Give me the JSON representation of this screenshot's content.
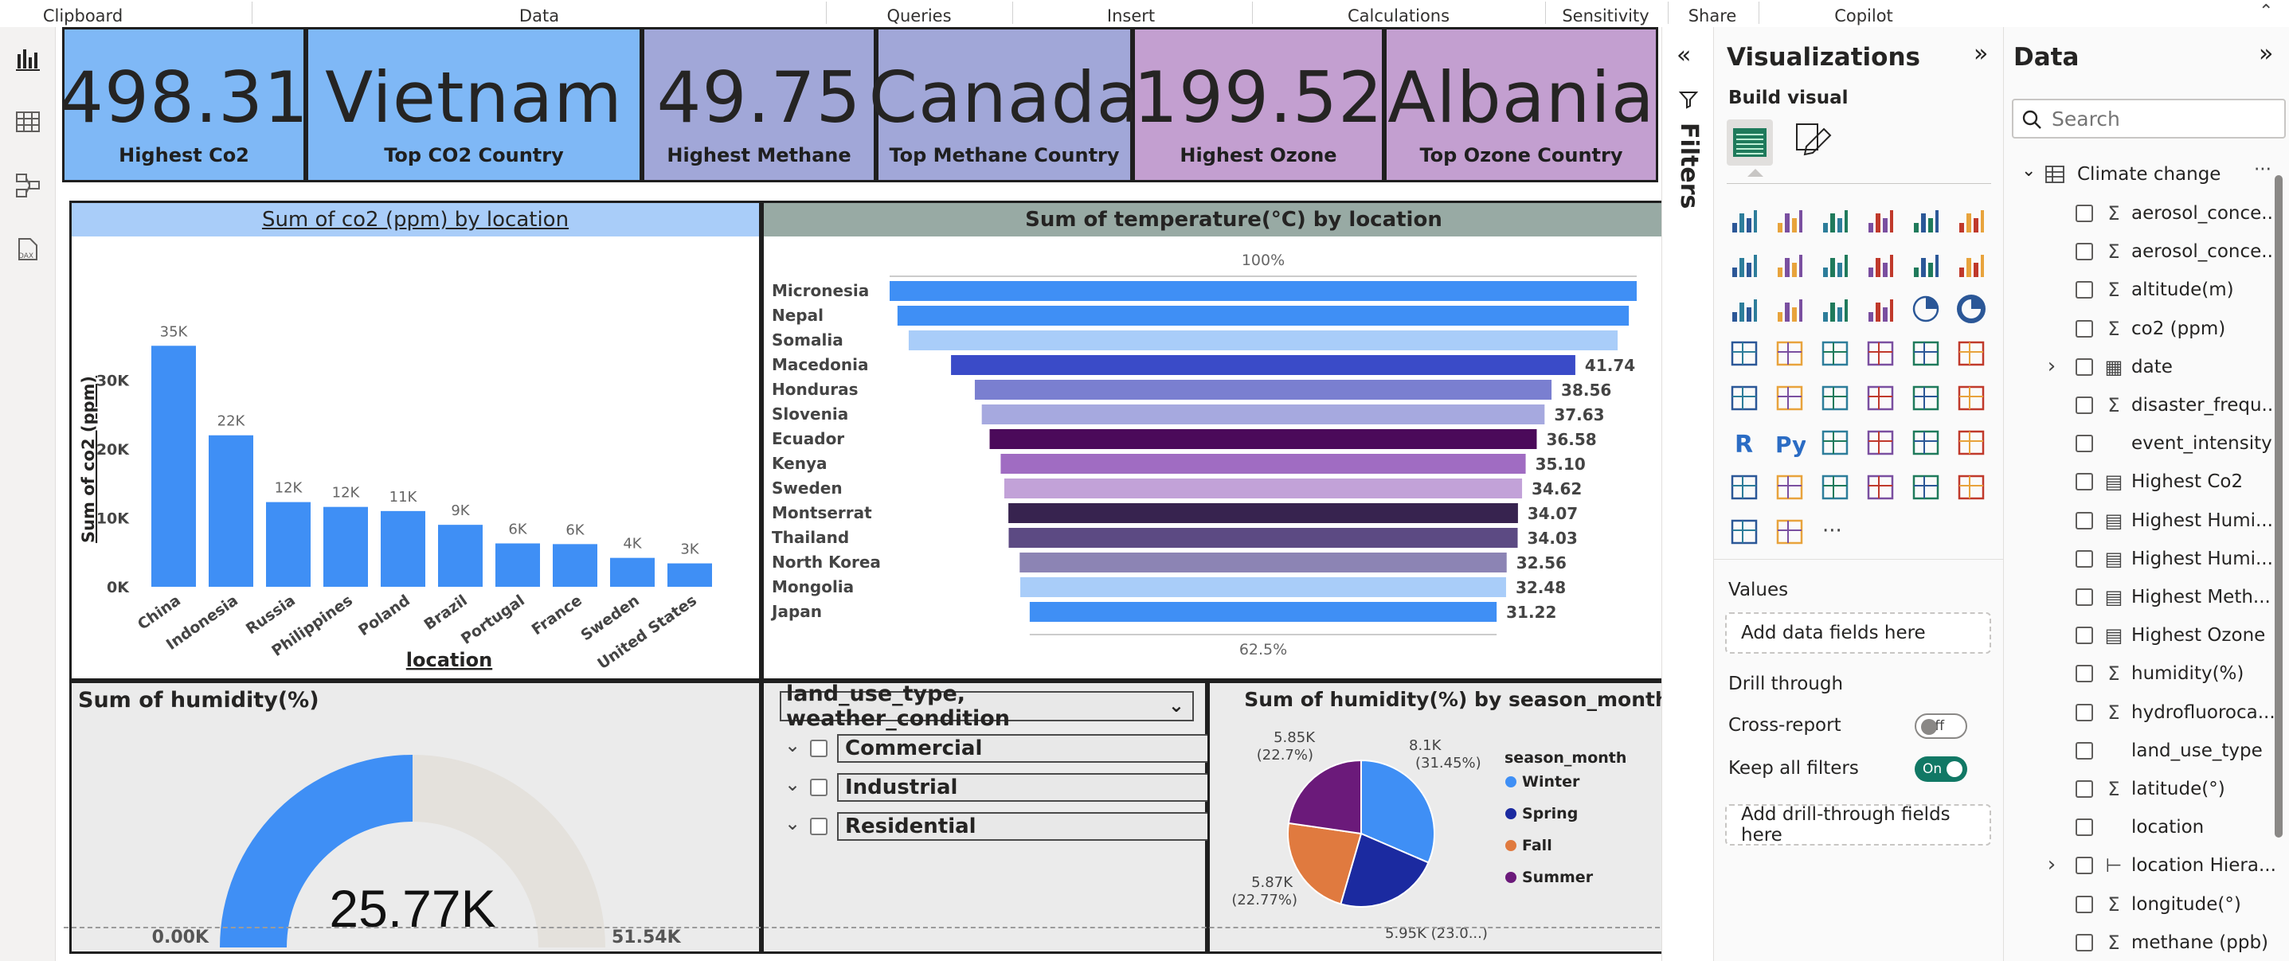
{
  "ribbon": {
    "groups": [
      "Clipboard",
      "Data",
      "Queries",
      "Insert",
      "Calculations",
      "Sensitivity",
      "Share",
      "Copilot"
    ]
  },
  "colors": {
    "kpi_blue": "#7fb8f6",
    "kpi_lavender": "#a1a7d8",
    "kpi_mauve": "#c39fd0",
    "bar_blue": "#3f8ff5",
    "toggle_on": "#117865"
  },
  "kpis": [
    {
      "value": "498.31",
      "label": "Highest Co2",
      "color": "#7fb8f6"
    },
    {
      "value": "Vietnam",
      "label": "Top CO2 Country",
      "color": "#7fb8f6"
    },
    {
      "value": "49.75",
      "label": "Highest Methane",
      "color": "#a1a7d8"
    },
    {
      "value": "Canada",
      "label": "Top Methane Country",
      "color": "#a1a7d8"
    },
    {
      "value": "199.52",
      "label": "Highest Ozone",
      "color": "#c39fd0"
    },
    {
      "value": "Albania",
      "label": "Top Ozone Country",
      "color": "#c39fd0"
    }
  ],
  "chart_data": [
    {
      "type": "bar",
      "title": "Sum of co2 (ppm) by location",
      "xlabel": "location",
      "ylabel": "Sum of co2 (ppm)",
      "categories": [
        "China",
        "Indonesia",
        "Russia",
        "Philippines",
        "Poland",
        "Brazil",
        "Portugal",
        "France",
        "Sweden",
        "United States"
      ],
      "values": [
        35000,
        22000,
        12300,
        11600,
        11000,
        9000,
        6300,
        6200,
        4200,
        3400
      ],
      "data_labels": [
        "35K",
        "22K",
        "12K",
        "12K",
        "11K",
        "9K",
        "6K",
        "6K",
        "4K",
        "3K"
      ],
      "yticks": [
        "0K",
        "10K",
        "20K",
        "30K"
      ],
      "ylim": [
        0,
        37000
      ]
    },
    {
      "type": "bar",
      "subtype": "funnel",
      "title": "Sum of temperature(°C) by location",
      "top_label": "100%",
      "bottom_label": "62.5%",
      "categories": [
        "Micronesia",
        "Nepal",
        "Somalia",
        "Macedonia",
        "Honduras",
        "Slovenia",
        "Ecuador",
        "Kenya",
        "Sweden",
        "Montserrat",
        "Thailand",
        "North Korea",
        "Mongolia",
        "Japan"
      ],
      "values": [
        49.95,
        48.9,
        47.4,
        41.74,
        38.56,
        37.63,
        36.58,
        35.1,
        34.62,
        34.07,
        34.03,
        32.56,
        32.48,
        31.22
      ],
      "data_labels": [
        "",
        "",
        "",
        "41.74",
        "38.56",
        "37.63",
        "36.58",
        "35.10",
        "34.62",
        "34.07",
        "34.03",
        "32.56",
        "32.48",
        "31.22"
      ],
      "colors": [
        "#3f8ff5",
        "#3f8ff5",
        "#a9cdf9",
        "#3a4bc8",
        "#7a7fd0",
        "#a6a9df",
        "#4b0a5a",
        "#a06cc2",
        "#c2a2d8",
        "#37234f",
        "#5c4a83",
        "#8c84b4",
        "#a9cdf9",
        "#3f8ff5"
      ]
    },
    {
      "type": "gauge",
      "title": "Sum of humidity(%)",
      "value": 25770,
      "value_label": "25.77K",
      "min": 0,
      "max": 51540,
      "min_label": "0.00K",
      "max_label": "51.54K"
    },
    {
      "type": "pie",
      "title": "Sum of humidity(%) by season_month",
      "legend_title": "season_month",
      "legend_position": "right",
      "categories": [
        "Winter",
        "Spring",
        "Fall",
        "Summer"
      ],
      "values": [
        31.45,
        23.0,
        22.77,
        22.7
      ],
      "labels": [
        "8.1K (31.45%)",
        "5.95K (23.0...)",
        "5.87K (22.77%)",
        "5.85K (22.7%)"
      ],
      "colors": [
        "#3f8ff5",
        "#1b2aa0",
        "#e07a3f",
        "#6b1a7a"
      ]
    }
  ],
  "slicer": {
    "header": "land_use_type, weather_condition",
    "items": [
      "Commercial",
      "Industrial",
      "Residential"
    ]
  },
  "filters": {
    "label": "Filters"
  },
  "visualizations": {
    "title": "Visualizations",
    "build_visual": "Build visual",
    "values_label": "Values",
    "values_placeholder": "Add data fields here",
    "drill_through": "Drill through",
    "cross_report": "Cross-report",
    "cross_report_state": "Off",
    "keep_filters": "Keep all filters",
    "keep_filters_state": "On",
    "drill_placeholder": "Add drill-through fields here",
    "more": "···"
  },
  "data_pane": {
    "title": "Data",
    "search_placeholder": "Search",
    "table": "Climate change",
    "more": "···",
    "fields": [
      {
        "name": "aerosol_conce...",
        "icon": "sigma"
      },
      {
        "name": "aerosol_conce...",
        "icon": "sigma"
      },
      {
        "name": "altitude(m)",
        "icon": "sigma"
      },
      {
        "name": "co2 (ppm)",
        "icon": "sigma"
      },
      {
        "name": "date",
        "icon": "calendar",
        "expand": true
      },
      {
        "name": "disaster_frequ...",
        "icon": "sigma"
      },
      {
        "name": "event_intensity",
        "icon": "none"
      },
      {
        "name": "Highest Co2",
        "icon": "calc"
      },
      {
        "name": "Highest Humi...",
        "icon": "calc"
      },
      {
        "name": "Highest Humi...",
        "icon": "calc"
      },
      {
        "name": "Highest Meth...",
        "icon": "calc"
      },
      {
        "name": "Highest Ozone",
        "icon": "calc"
      },
      {
        "name": "humidity(%)",
        "icon": "sigma"
      },
      {
        "name": "hydrofluoroca...",
        "icon": "sigma"
      },
      {
        "name": "land_use_type",
        "icon": "none"
      },
      {
        "name": "latitude(°)",
        "icon": "sigma"
      },
      {
        "name": "location",
        "icon": "none"
      },
      {
        "name": "location Hiera...",
        "icon": "hierarchy",
        "expand": true
      },
      {
        "name": "longitude(°)",
        "icon": "sigma"
      },
      {
        "name": "methane (ppb)",
        "icon": "sigma"
      }
    ]
  }
}
